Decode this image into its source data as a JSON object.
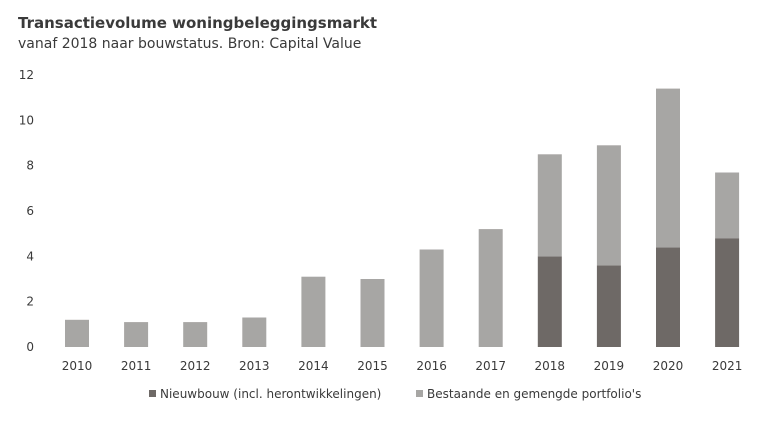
{
  "chart_data": {
    "type": "bar",
    "stacked": true,
    "title": "Transactievolume woningbeleggingsmarkt",
    "subtitle": "vanaf 2018 naar bouwstatus. Bron: Capital Value",
    "xlabel": "",
    "ylabel": "",
    "ylim": [
      0,
      12
    ],
    "yticks": [
      0,
      2,
      4,
      6,
      8,
      10,
      12
    ],
    "grid": false,
    "legend_position": "bottom",
    "categories": [
      "2010",
      "2011",
      "2012",
      "2013",
      "2014",
      "2015",
      "2016",
      "2017",
      "2018",
      "2019",
      "2020",
      "2021"
    ],
    "series": [
      {
        "name": "Nieuwbouw (incl. herontwikkelingen)",
        "color": "#6e6966",
        "values": [
          0,
          0,
          0,
          0,
          0,
          0,
          0,
          0,
          4.0,
          3.6,
          4.4,
          4.8
        ]
      },
      {
        "name": "Bestaande en gemengde portfolio's",
        "color": "#a7a6a4",
        "values": [
          1.2,
          1.1,
          1.1,
          1.3,
          3.1,
          3.0,
          4.3,
          5.2,
          4.5,
          5.3,
          7.0,
          2.9
        ]
      }
    ]
  }
}
